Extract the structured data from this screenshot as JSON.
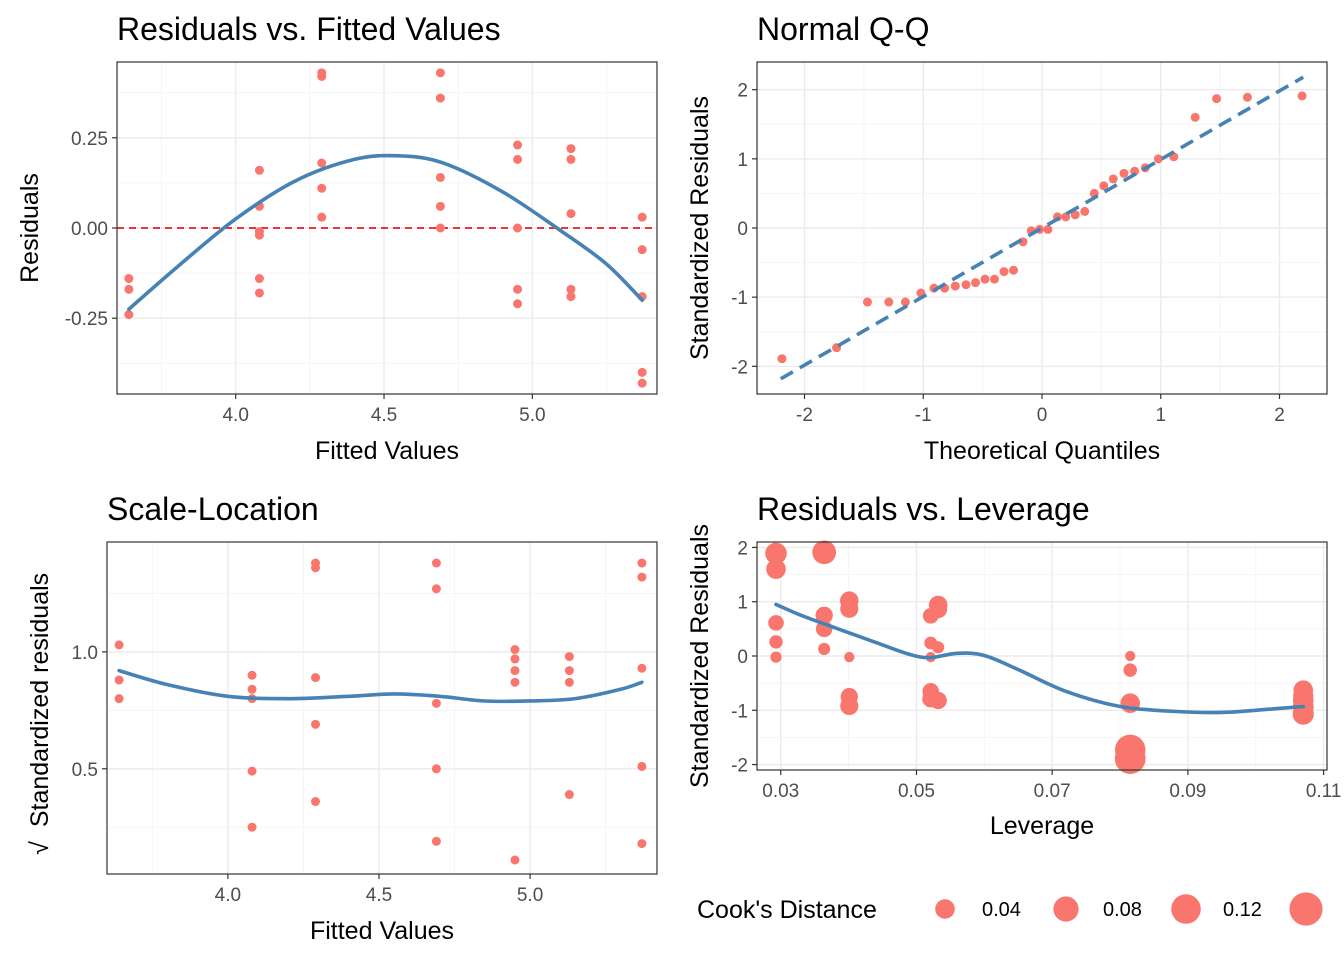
{
  "colors": {
    "points": "#F8766D",
    "smooth": "#4682B4",
    "refline": "#E41A1C",
    "grid_major": "#EBEBEB",
    "grid_minor": "#F5F5F5",
    "border": "#333333"
  },
  "chart_data": [
    {
      "id": "rvf",
      "type": "scatter",
      "title": "Residuals vs. Fitted Values",
      "xlabel": "Fitted Values",
      "ylabel": "Residuals",
      "xlim": [
        3.6,
        5.42
      ],
      "ylim": [
        -0.46,
        0.46
      ],
      "xticks": [
        4.0,
        4.5,
        5.0
      ],
      "xtick_labels": [
        "4.0",
        "4.5",
        "5.0"
      ],
      "yticks": [
        -0.25,
        0.0,
        0.25
      ],
      "ytick_labels": [
        "-0.25",
        "0.00",
        "0.25"
      ],
      "hline": 0,
      "points": [
        [
          3.64,
          -0.14
        ],
        [
          3.64,
          -0.17
        ],
        [
          3.64,
          -0.24
        ],
        [
          4.08,
          0.16
        ],
        [
          4.08,
          0.06
        ],
        [
          4.08,
          -0.01
        ],
        [
          4.08,
          -0.02
        ],
        [
          4.08,
          -0.14
        ],
        [
          4.08,
          -0.18
        ],
        [
          4.29,
          0.43
        ],
        [
          4.29,
          0.42
        ],
        [
          4.29,
          0.18
        ],
        [
          4.29,
          0.11
        ],
        [
          4.29,
          0.03
        ],
        [
          4.69,
          0.43
        ],
        [
          4.69,
          0.36
        ],
        [
          4.69,
          0.14
        ],
        [
          4.69,
          0.06
        ],
        [
          4.69,
          0.0
        ],
        [
          4.95,
          0.23
        ],
        [
          4.95,
          0.19
        ],
        [
          4.95,
          0.0
        ],
        [
          4.95,
          -0.17
        ],
        [
          4.95,
          -0.21
        ],
        [
          5.13,
          0.22
        ],
        [
          5.13,
          0.19
        ],
        [
          5.13,
          0.04
        ],
        [
          5.13,
          -0.17
        ],
        [
          5.13,
          -0.19
        ],
        [
          5.37,
          -0.06
        ],
        [
          5.37,
          -0.19
        ],
        [
          5.37,
          -0.4
        ],
        [
          5.37,
          -0.43
        ],
        [
          5.37,
          0.03
        ]
      ],
      "smooth": [
        [
          3.64,
          -0.225
        ],
        [
          3.8,
          -0.11
        ],
        [
          4.0,
          0.025
        ],
        [
          4.2,
          0.13
        ],
        [
          4.4,
          0.19
        ],
        [
          4.55,
          0.2
        ],
        [
          4.7,
          0.18
        ],
        [
          4.9,
          0.1
        ],
        [
          5.1,
          -0.01
        ],
        [
          5.25,
          -0.1
        ],
        [
          5.37,
          -0.2
        ]
      ]
    },
    {
      "id": "qq",
      "type": "scatter",
      "title": "Normal Q-Q",
      "xlabel": "Theoretical Quantiles",
      "ylabel": "Standardized Residuals",
      "xlim": [
        -2.4,
        2.4
      ],
      "ylim": [
        -2.4,
        2.4
      ],
      "xticks": [
        -2,
        -1,
        0,
        1,
        2
      ],
      "xtick_labels": [
        "-2",
        "-1",
        "0",
        "1",
        "2"
      ],
      "yticks": [
        -2,
        -1,
        0,
        1,
        2
      ],
      "ytick_labels": [
        "-2",
        "-1",
        "0",
        "1",
        "2"
      ],
      "points": [
        [
          -2.19,
          -1.89
        ],
        [
          -1.73,
          -1.73
        ],
        [
          -1.47,
          -1.07
        ],
        [
          -1.29,
          -1.07
        ],
        [
          -1.15,
          -1.07
        ],
        [
          -1.02,
          -0.94
        ],
        [
          -0.91,
          -0.87
        ],
        [
          -0.82,
          -0.87
        ],
        [
          -0.73,
          -0.84
        ],
        [
          -0.64,
          -0.82
        ],
        [
          -0.56,
          -0.79
        ],
        [
          -0.48,
          -0.74
        ],
        [
          -0.4,
          -0.74
        ],
        [
          -0.32,
          -0.63
        ],
        [
          -0.24,
          -0.61
        ],
        [
          -0.16,
          -0.2
        ],
        [
          -0.09,
          -0.04
        ],
        [
          -0.02,
          -0.02
        ],
        [
          0.05,
          -0.02
        ],
        [
          0.13,
          0.16
        ],
        [
          0.2,
          0.16
        ],
        [
          0.28,
          0.19
        ],
        [
          0.36,
          0.24
        ],
        [
          0.44,
          0.5
        ],
        [
          0.52,
          0.61
        ],
        [
          0.6,
          0.71
        ],
        [
          0.69,
          0.79
        ],
        [
          0.78,
          0.82
        ],
        [
          0.87,
          0.87
        ],
        [
          0.98,
          1.0
        ],
        [
          1.11,
          1.03
        ],
        [
          1.29,
          1.6
        ],
        [
          1.47,
          1.87
        ],
        [
          1.73,
          1.89
        ],
        [
          2.19,
          1.91
        ]
      ],
      "refline": [
        [
          -2.2,
          -2.18
        ],
        [
          2.2,
          2.18
        ]
      ]
    },
    {
      "id": "sl",
      "type": "scatter",
      "title": "Scale-Location",
      "xlabel": "Fitted Values",
      "ylabel": "Standardized residuals",
      "ylabel_sqrt": "√",
      "xlim": [
        3.6,
        5.42
      ],
      "ylim": [
        0.05,
        1.47
      ],
      "xticks": [
        4.0,
        4.5,
        5.0
      ],
      "xtick_labels": [
        "4.0",
        "4.5",
        "5.0"
      ],
      "yticks": [
        0.5,
        1.0
      ],
      "ytick_labels": [
        "0.5",
        "1.0"
      ],
      "points": [
        [
          3.64,
          1.03
        ],
        [
          3.64,
          0.88
        ],
        [
          3.64,
          0.8
        ],
        [
          4.08,
          0.9
        ],
        [
          4.08,
          0.84
        ],
        [
          4.08,
          0.8
        ],
        [
          4.08,
          0.49
        ],
        [
          4.08,
          0.25
        ],
        [
          4.29,
          1.38
        ],
        [
          4.29,
          1.36
        ],
        [
          4.29,
          0.89
        ],
        [
          4.29,
          0.69
        ],
        [
          4.29,
          0.36
        ],
        [
          4.69,
          1.38
        ],
        [
          4.69,
          1.27
        ],
        [
          4.69,
          0.78
        ],
        [
          4.69,
          0.5
        ],
        [
          4.69,
          0.19
        ],
        [
          4.95,
          1.01
        ],
        [
          4.95,
          0.97
        ],
        [
          4.95,
          0.92
        ],
        [
          4.95,
          0.87
        ],
        [
          4.95,
          0.11
        ],
        [
          5.13,
          0.98
        ],
        [
          5.13,
          0.92
        ],
        [
          5.13,
          0.87
        ],
        [
          5.13,
          0.39
        ],
        [
          5.37,
          1.38
        ],
        [
          5.37,
          1.32
        ],
        [
          5.37,
          0.93
        ],
        [
          5.37,
          0.51
        ],
        [
          5.37,
          0.18
        ]
      ],
      "smooth": [
        [
          3.64,
          0.92
        ],
        [
          3.8,
          0.86
        ],
        [
          4.0,
          0.81
        ],
        [
          4.2,
          0.8
        ],
        [
          4.4,
          0.81
        ],
        [
          4.55,
          0.82
        ],
        [
          4.7,
          0.81
        ],
        [
          4.85,
          0.79
        ],
        [
          5.0,
          0.79
        ],
        [
          5.15,
          0.8
        ],
        [
          5.3,
          0.84
        ],
        [
          5.37,
          0.87
        ]
      ]
    },
    {
      "id": "rvl",
      "type": "scatter",
      "title": "Residuals vs. Leverage",
      "xlabel": "Leverage",
      "ylabel": "Standardized Residuals",
      "xlim": [
        0.0265,
        0.1105
      ],
      "ylim": [
        -2.1,
        2.1
      ],
      "xticks": [
        0.03,
        0.05,
        0.07,
        0.09,
        0.11
      ],
      "xtick_labels": [
        "0.03",
        "0.05",
        "0.07",
        "0.09",
        "0.11"
      ],
      "yticks": [
        -2,
        -1,
        0,
        1,
        2
      ],
      "ytick_labels": [
        "-2",
        "-1",
        "0",
        "1",
        "2"
      ],
      "points": [
        [
          0.0293,
          1.89,
          0.052
        ],
        [
          0.0293,
          1.6,
          0.04
        ],
        [
          0.0293,
          0.61,
          0.02
        ],
        [
          0.0293,
          0.26,
          0.012
        ],
        [
          0.0293,
          -0.02,
          0.006
        ],
        [
          0.0364,
          1.91,
          0.068
        ],
        [
          0.0364,
          0.75,
          0.028
        ],
        [
          0.0364,
          0.5,
          0.024
        ],
        [
          0.0364,
          0.13,
          0.008
        ],
        [
          0.0401,
          1.02,
          0.034
        ],
        [
          0.0401,
          0.87,
          0.032
        ],
        [
          0.0401,
          -0.02,
          0.004
        ],
        [
          0.0401,
          -0.75,
          0.028
        ],
        [
          0.0401,
          -0.92,
          0.032
        ],
        [
          0.0521,
          0.74,
          0.02
        ],
        [
          0.0521,
          0.24,
          0.01
        ],
        [
          0.0521,
          -0.02,
          0.004
        ],
        [
          0.0521,
          -0.65,
          0.024
        ],
        [
          0.0521,
          -0.79,
          0.026
        ],
        [
          0.0532,
          0.94,
          0.034
        ],
        [
          0.0532,
          0.86,
          0.03
        ],
        [
          0.0532,
          0.16,
          0.008
        ],
        [
          0.0532,
          -0.82,
          0.028
        ],
        [
          0.0815,
          0.0,
          0.004
        ],
        [
          0.0815,
          -0.26,
          0.012
        ],
        [
          0.0815,
          -0.87,
          0.04
        ],
        [
          0.0815,
          -1.73,
          0.13
        ],
        [
          0.0815,
          -1.89,
          0.132
        ],
        [
          0.107,
          -0.63,
          0.04
        ],
        [
          0.107,
          -0.74,
          0.044
        ],
        [
          0.107,
          -0.82,
          0.046
        ],
        [
          0.107,
          -0.94,
          0.048
        ],
        [
          0.107,
          -1.07,
          0.05
        ]
      ],
      "smooth": [
        [
          0.0293,
          0.95
        ],
        [
          0.033,
          0.75
        ],
        [
          0.038,
          0.52
        ],
        [
          0.044,
          0.25
        ],
        [
          0.049,
          0.03
        ],
        [
          0.052,
          -0.03
        ],
        [
          0.056,
          0.05
        ],
        [
          0.06,
          0.01
        ],
        [
          0.065,
          -0.25
        ],
        [
          0.072,
          -0.65
        ],
        [
          0.08,
          -0.93
        ],
        [
          0.088,
          -1.02
        ],
        [
          0.095,
          -1.04
        ],
        [
          0.102,
          -0.98
        ],
        [
          0.107,
          -0.93
        ]
      ],
      "legend": {
        "title": "Cook's Distance",
        "placement": "bottom",
        "entries": [
          {
            "label": "0.04",
            "value": 0.04
          },
          {
            "label": "0.08",
            "value": 0.08
          },
          {
            "label": "0.12",
            "value": 0.12
          },
          {
            "label": "",
            "value": 0.16
          }
        ]
      }
    }
  ]
}
